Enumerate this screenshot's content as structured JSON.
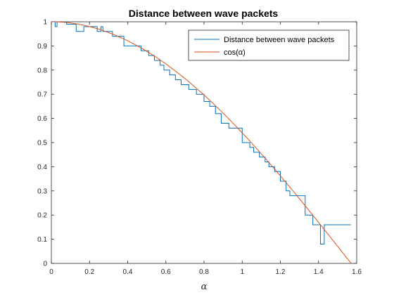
{
  "chart_data": {
    "type": "line",
    "title": "Distance between wave packets",
    "xlabel": "α",
    "ylabel": "",
    "xlim": [
      0,
      1.6
    ],
    "ylim": [
      0,
      1
    ],
    "xticks": [
      0,
      0.2,
      0.4,
      0.6,
      0.8,
      1,
      1.2,
      1.4,
      1.6
    ],
    "yticks": [
      0,
      0.1,
      0.2,
      0.3,
      0.4,
      0.5,
      0.6,
      0.7,
      0.8,
      0.9,
      1
    ],
    "grid": false,
    "legend_position": "top-right",
    "series": [
      {
        "name": "Distance between wave packets",
        "color": "#0072bd",
        "style": "step",
        "x": [
          0,
          0.02,
          0.03,
          0.04,
          0.08,
          0.13,
          0.17,
          0.24,
          0.26,
          0.27,
          0.29,
          0.32,
          0.38,
          0.47,
          0.51,
          0.54,
          0.57,
          0.59,
          0.62,
          0.65,
          0.68,
          0.72,
          0.76,
          0.8,
          0.83,
          0.86,
          0.89,
          0.93,
          0.95,
          1.0,
          1.04,
          1.06,
          1.09,
          1.12,
          1.14,
          1.17,
          1.2,
          1.23,
          1.25,
          1.28,
          1.33,
          1.37,
          1.41,
          1.43,
          1.57
        ],
        "y": [
          1.0,
          0.98,
          1.0,
          1.0,
          0.99,
          0.96,
          0.98,
          0.96,
          0.98,
          0.96,
          0.96,
          0.94,
          0.9,
          0.88,
          0.86,
          0.84,
          0.82,
          0.8,
          0.78,
          0.76,
          0.74,
          0.72,
          0.7,
          0.67,
          0.65,
          0.62,
          0.58,
          0.56,
          0.56,
          0.5,
          0.48,
          0.46,
          0.44,
          0.42,
          0.4,
          0.38,
          0.34,
          0.3,
          0.28,
          0.28,
          0.2,
          0.16,
          0.08,
          0.16,
          0.16
        ]
      },
      {
        "name": "cos(α)",
        "color": "#d95319",
        "style": "line",
        "function": "cos",
        "x_range": [
          0,
          1.5708
        ]
      }
    ]
  }
}
